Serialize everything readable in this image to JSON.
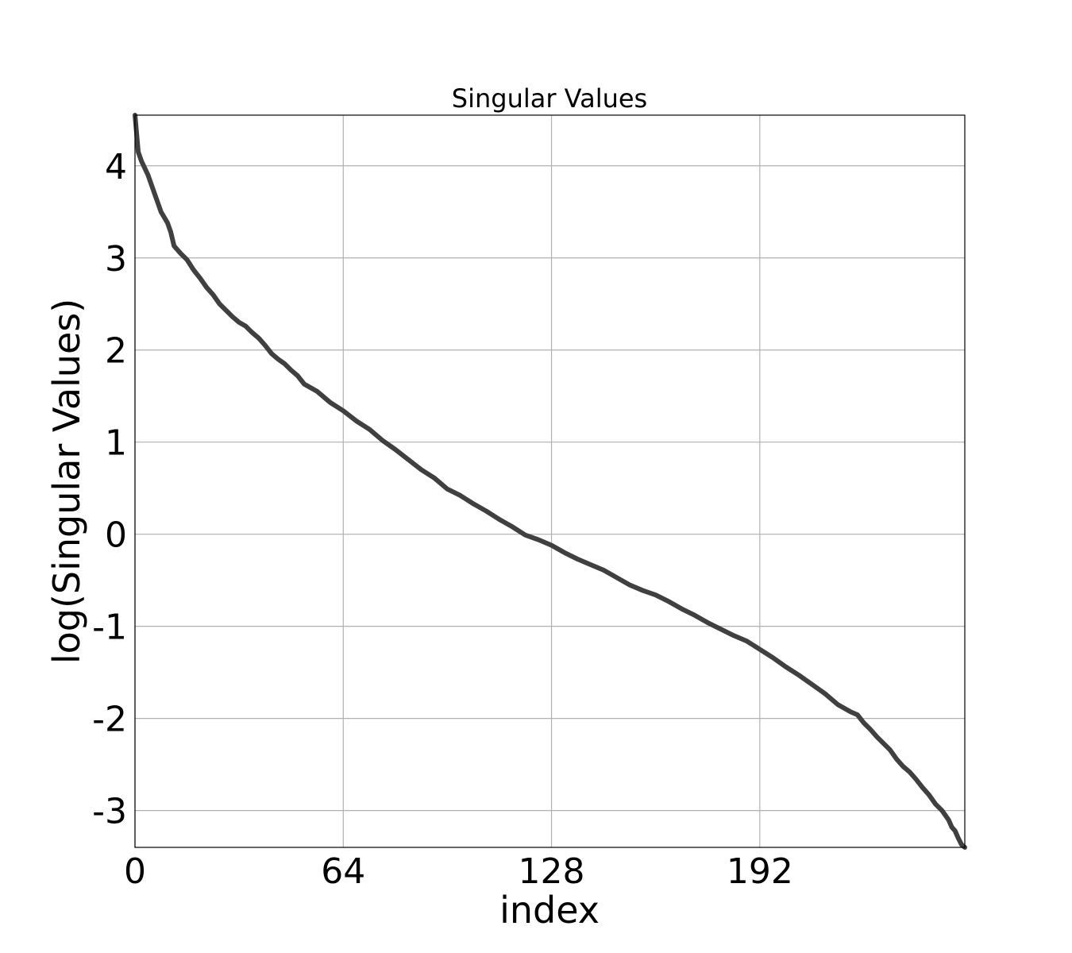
{
  "chart_data": {
    "type": "line",
    "title": "Singular Values",
    "xlabel": "index",
    "ylabel": "log(Singular Values)",
    "xlim": [
      0,
      255
    ],
    "ylim": [
      -3.4,
      4.55
    ],
    "xticks": [
      0,
      64,
      128,
      192
    ],
    "xtick_labels": [
      "0",
      "64",
      "128",
      "192"
    ],
    "yticks": [
      -3,
      -2,
      -1,
      0,
      1,
      2,
      3,
      4
    ],
    "ytick_labels": [
      "-3",
      "-2",
      "-1",
      "0",
      "1",
      "2",
      "3",
      "4"
    ],
    "grid": true,
    "line_color": "#404040",
    "series": [
      {
        "x": [
          0,
          1,
          2,
          4,
          6,
          8,
          10,
          11,
          12,
          14,
          16,
          18,
          20,
          22,
          24,
          26,
          28,
          30,
          32,
          34,
          36,
          38,
          40,
          42,
          44,
          46,
          48,
          50,
          52,
          56,
          60,
          64,
          68,
          72,
          76,
          80,
          84,
          88,
          92,
          96,
          100,
          104,
          108,
          112,
          116,
          120,
          124,
          128,
          132,
          136,
          140,
          144,
          148,
          152,
          156,
          160,
          164,
          168,
          172,
          176,
          180,
          184,
          188,
          192,
          196,
          200,
          204,
          208,
          212,
          216,
          220,
          222,
          224,
          226,
          228,
          230,
          232,
          234,
          236,
          238,
          240,
          242,
          244,
          246,
          248,
          250,
          251,
          252,
          253,
          254,
          255
        ],
        "y": [
          4.55,
          4.15,
          4.05,
          3.9,
          3.7,
          3.5,
          3.38,
          3.28,
          3.13,
          3.05,
          2.98,
          2.87,
          2.78,
          2.68,
          2.6,
          2.5,
          2.43,
          2.36,
          2.3,
          2.26,
          2.19,
          2.13,
          2.05,
          1.96,
          1.9,
          1.85,
          1.78,
          1.72,
          1.63,
          1.55,
          1.43,
          1.34,
          1.23,
          1.14,
          1.02,
          0.92,
          0.81,
          0.7,
          0.61,
          0.49,
          0.42,
          0.33,
          0.25,
          0.16,
          0.08,
          -0.01,
          -0.06,
          -0.12,
          -0.2,
          -0.27,
          -0.33,
          -0.39,
          -0.47,
          -0.55,
          -0.61,
          -0.66,
          -0.73,
          -0.81,
          -0.88,
          -0.96,
          -1.03,
          -1.1,
          -1.16,
          -1.25,
          -1.34,
          -1.44,
          -1.53,
          -1.63,
          -1.73,
          -1.85,
          -1.93,
          -1.96,
          -2.05,
          -2.12,
          -2.2,
          -2.27,
          -2.34,
          -2.44,
          -2.52,
          -2.58,
          -2.66,
          -2.75,
          -2.83,
          -2.93,
          -3.0,
          -3.1,
          -3.18,
          -3.22,
          -3.3,
          -3.37,
          -3.4
        ]
      }
    ]
  }
}
